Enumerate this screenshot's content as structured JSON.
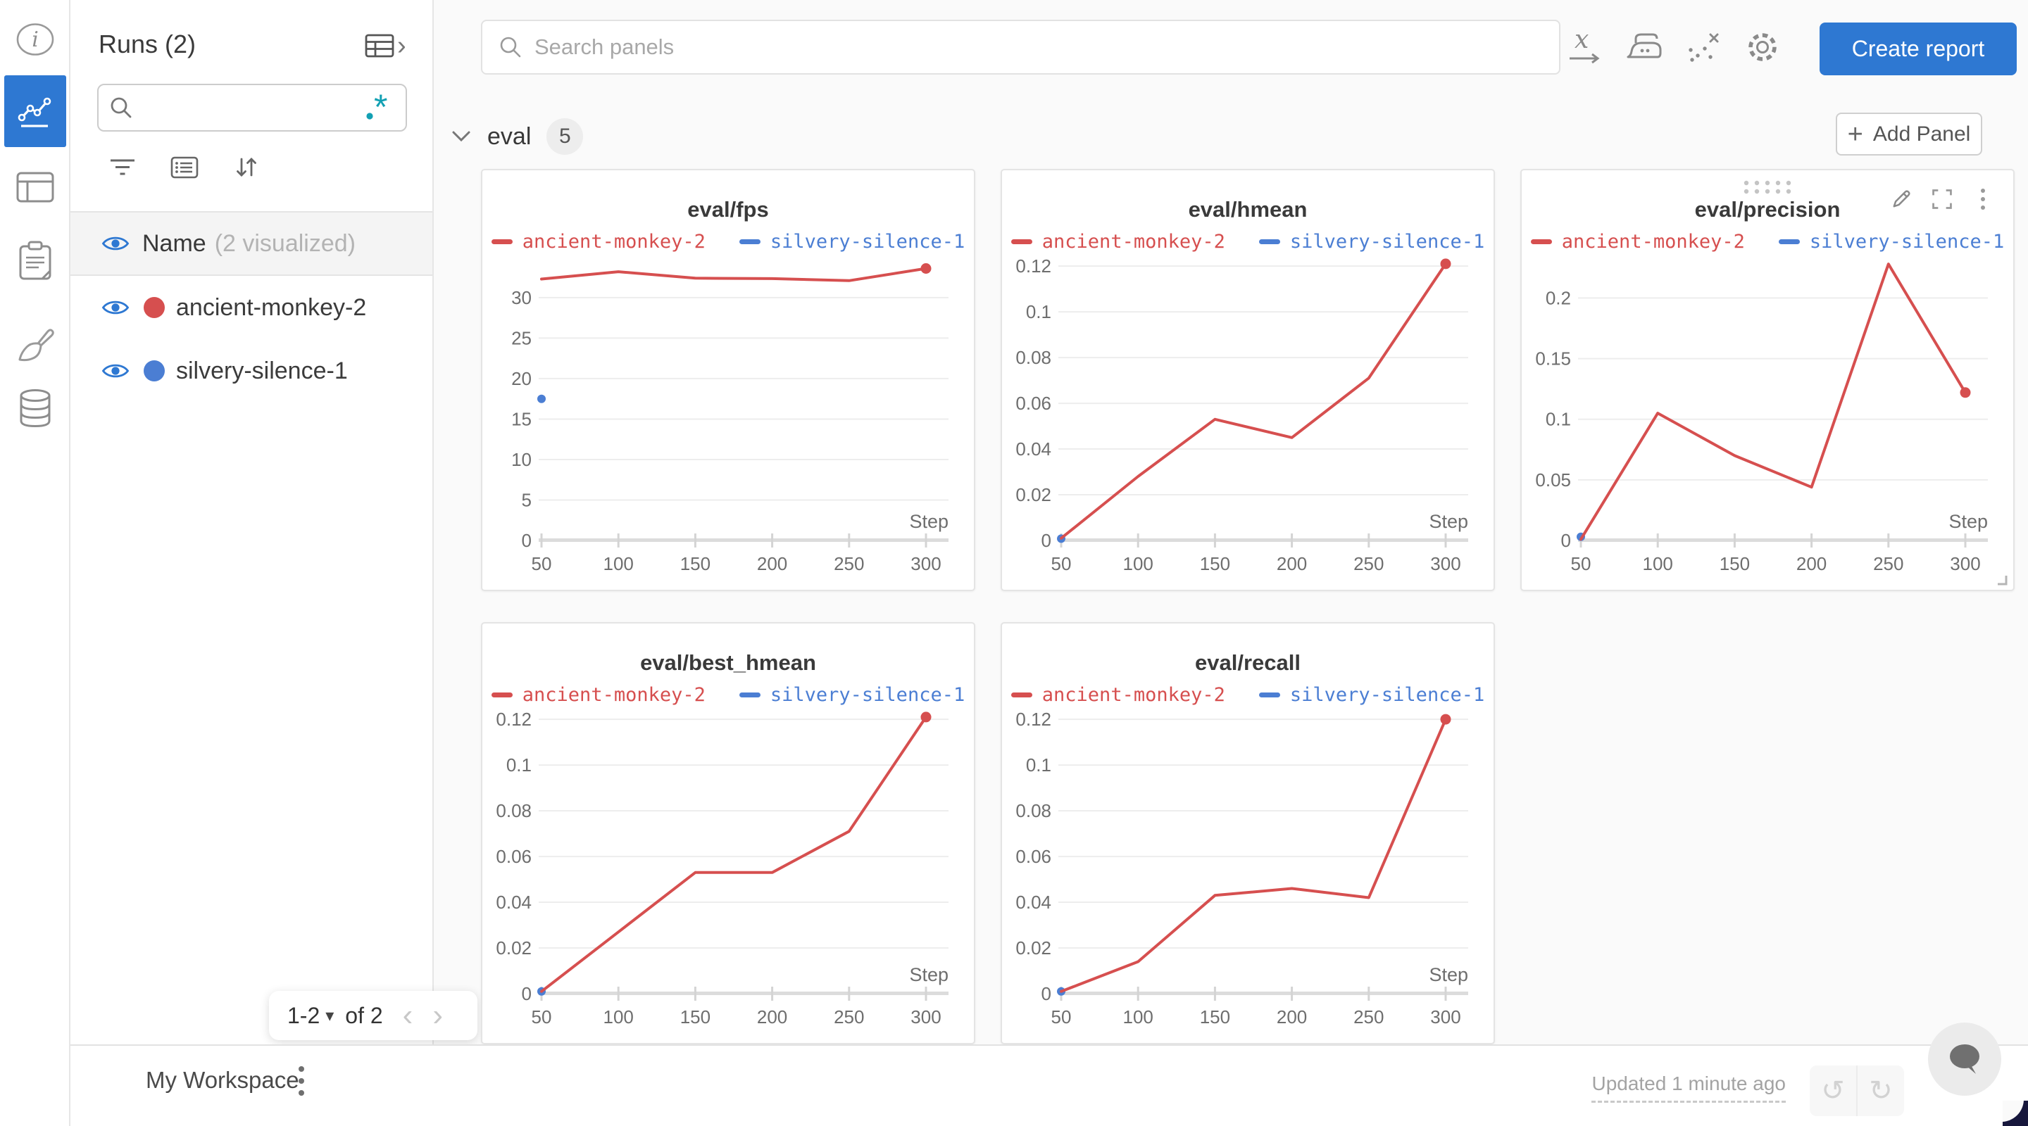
{
  "app": {
    "accent_blue": "#2e78d2",
    "run_red": "#d64f4f",
    "run_blue": "#4b7ed3",
    "teal": "#12a0b3"
  },
  "left_rail": {
    "items": [
      {
        "icon": "info-icon",
        "active": false
      },
      {
        "icon": "line-chart-icon",
        "active": true
      },
      {
        "icon": "table-icon",
        "active": false
      },
      {
        "icon": "clipboard-icon",
        "active": false
      },
      {
        "icon": "brush-icon",
        "active": false
      },
      {
        "icon": "database-icon",
        "active": false
      }
    ]
  },
  "sidebar": {
    "title": "Runs (2)",
    "header_icons": [
      "runs-table-icon",
      "chevron-right-icon"
    ],
    "search": {
      "value": "",
      "placeholder": "",
      "regex_icon": ".*"
    },
    "tools": [
      "filter-icon",
      "list-icon",
      "sort-icon"
    ],
    "name_header": {
      "label": "Name",
      "sub": "(2 visualized)",
      "eye_icon": "eye-icon"
    },
    "runs": [
      {
        "name": "ancient-monkey-2",
        "color": "#d64f4f",
        "visible": true
      },
      {
        "name": "silvery-silence-1",
        "color": "#4b7ed3",
        "visible": true
      }
    ],
    "pagination": {
      "range": "1-2",
      "caret": "▾",
      "of": "of 2",
      "prev": "‹",
      "next": "›"
    }
  },
  "topbar": {
    "search_placeholder": "Search panels",
    "icons": [
      "x-axis-icon",
      "smoothing-iron-icon",
      "outliers-icon",
      "settings-gear-icon"
    ],
    "create_report": "Create report"
  },
  "section": {
    "label": "eval",
    "count": "5",
    "add_panel": "Add Panel",
    "plus": "+"
  },
  "chart_data": [
    {
      "title": "eval/fps",
      "type": "line",
      "xlabel": "Step",
      "xlim": [
        50,
        300
      ],
      "xticks": [
        50,
        100,
        150,
        200,
        250,
        300
      ],
      "ylim": [
        0,
        34.6
      ],
      "yticks": [
        0,
        5,
        10,
        15,
        20,
        25,
        30
      ],
      "grid": true,
      "legend_position": "top",
      "hover_controls": false,
      "series": [
        {
          "name": "ancient-monkey-2",
          "color": "#d64f4f",
          "x": [
            50,
            100,
            150,
            200,
            250,
            300
          ],
          "y": [
            32.3,
            33.2,
            32.4,
            32.35,
            32.1,
            33.6
          ]
        },
        {
          "name": "silvery-silence-1",
          "color": "#4b7ed3",
          "x": [
            50
          ],
          "y": [
            17.5
          ]
        }
      ]
    },
    {
      "title": "eval/hmean",
      "type": "line",
      "xlabel": "Step",
      "xlim": [
        50,
        300
      ],
      "xticks": [
        50,
        100,
        150,
        200,
        250,
        300
      ],
      "ylim": [
        0,
        0.1225
      ],
      "yticks": [
        0,
        0.02,
        0.04,
        0.06,
        0.08,
        0.1,
        0.12
      ],
      "grid": true,
      "legend_position": "top",
      "hover_controls": false,
      "series": [
        {
          "name": "ancient-monkey-2",
          "color": "#d64f4f",
          "x": [
            50,
            100,
            150,
            200,
            250,
            300
          ],
          "y": [
            0.001,
            0.028,
            0.053,
            0.045,
            0.071,
            0.121
          ]
        },
        {
          "name": "silvery-silence-1",
          "color": "#4b7ed3",
          "x": [
            50
          ],
          "y": [
            0.0008
          ]
        }
      ]
    },
    {
      "title": "eval/precision",
      "type": "line",
      "xlabel": "Step",
      "xlim": [
        50,
        300
      ],
      "xticks": [
        50,
        100,
        150,
        200,
        250,
        300
      ],
      "ylim": [
        0,
        0.231
      ],
      "yticks": [
        0,
        0.05,
        0.1,
        0.15,
        0.2
      ],
      "grid": true,
      "legend_position": "top",
      "hover_controls": true,
      "series": [
        {
          "name": "ancient-monkey-2",
          "color": "#d64f4f",
          "x": [
            50,
            100,
            150,
            200,
            250,
            300
          ],
          "y": [
            0.001,
            0.105,
            0.07,
            0.044,
            0.228,
            0.122
          ]
        },
        {
          "name": "silvery-silence-1",
          "color": "#4b7ed3",
          "x": [
            50
          ],
          "y": [
            0.003
          ]
        }
      ]
    },
    {
      "title": "eval/best_hmean",
      "type": "line",
      "xlabel": "Step",
      "xlim": [
        50,
        300
      ],
      "xticks": [
        50,
        100,
        150,
        200,
        250,
        300
      ],
      "ylim": [
        0,
        0.1225
      ],
      "yticks": [
        0,
        0.02,
        0.04,
        0.06,
        0.08,
        0.1,
        0.12
      ],
      "grid": true,
      "legend_position": "top",
      "hover_controls": false,
      "series": [
        {
          "name": "ancient-monkey-2",
          "color": "#d64f4f",
          "x": [
            50,
            100,
            150,
            200,
            250,
            300
          ],
          "y": [
            0.001,
            0.027,
            0.053,
            0.053,
            0.071,
            0.121
          ]
        },
        {
          "name": "silvery-silence-1",
          "color": "#4b7ed3",
          "x": [
            50
          ],
          "y": [
            0.001
          ]
        }
      ]
    },
    {
      "title": "eval/recall",
      "type": "line",
      "xlabel": "Step",
      "xlim": [
        50,
        300
      ],
      "xticks": [
        50,
        100,
        150,
        200,
        250,
        300
      ],
      "ylim": [
        0,
        0.1225
      ],
      "yticks": [
        0,
        0.02,
        0.04,
        0.06,
        0.08,
        0.1,
        0.12
      ],
      "grid": true,
      "legend_position": "top",
      "hover_controls": false,
      "series": [
        {
          "name": "ancient-monkey-2",
          "color": "#d64f4f",
          "x": [
            50,
            100,
            150,
            200,
            250,
            300
          ],
          "y": [
            0.001,
            0.014,
            0.043,
            0.046,
            0.042,
            0.12
          ]
        },
        {
          "name": "silvery-silence-1",
          "color": "#4b7ed3",
          "x": [
            50
          ],
          "y": [
            0.001
          ]
        }
      ]
    }
  ],
  "bottombar": {
    "workspace": "My Workspace",
    "updated": "Updated 1 minute ago",
    "undo": "↺",
    "redo": "↻",
    "icons": [
      "kebab-icon",
      "undo-icon",
      "redo-icon",
      "chat-bubble-icon"
    ]
  }
}
